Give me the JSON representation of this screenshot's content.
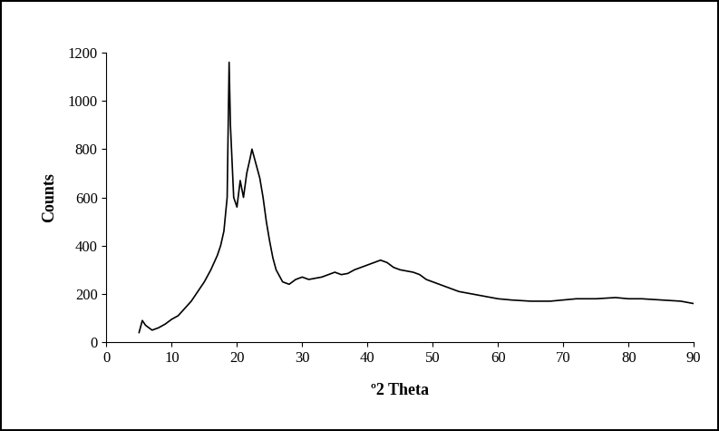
{
  "chart_data": {
    "type": "line",
    "x_label": "º2 Theta",
    "y_label": "Counts",
    "x": [
      5,
      5.5,
      6,
      7,
      8,
      9,
      10,
      11,
      12,
      13,
      14,
      15,
      16,
      17,
      17.5,
      18,
      18.5,
      18.8,
      19,
      19.5,
      20,
      20.5,
      21,
      21.5,
      22,
      22.3,
      22.8,
      23.5,
      24,
      24.5,
      25,
      25.5,
      26,
      27,
      28,
      29,
      30,
      31,
      32,
      33,
      34,
      35,
      36,
      37,
      38,
      39,
      40,
      41,
      42,
      43,
      44,
      45,
      46,
      47,
      48,
      49,
      50,
      52,
      54,
      56,
      58,
      60,
      62,
      65,
      68,
      70,
      72,
      75,
      78,
      80,
      82,
      85,
      88,
      90
    ],
    "values": [
      40,
      90,
      70,
      50,
      60,
      75,
      95,
      110,
      140,
      170,
      210,
      250,
      300,
      360,
      400,
      460,
      600,
      1160,
      900,
      600,
      560,
      670,
      600,
      700,
      760,
      800,
      750,
      680,
      600,
      500,
      420,
      350,
      300,
      250,
      240,
      260,
      270,
      260,
      265,
      270,
      280,
      290,
      280,
      285,
      300,
      310,
      320,
      330,
      340,
      330,
      310,
      300,
      295,
      290,
      280,
      260,
      250,
      230,
      210,
      200,
      190,
      180,
      175,
      170,
      170,
      175,
      180,
      180,
      185,
      180,
      180,
      175,
      170,
      160
    ],
    "color": "#000000",
    "xlim": [
      0,
      90
    ],
    "xticks": [
      0,
      10,
      20,
      30,
      40,
      50,
      60,
      70,
      80,
      90
    ],
    "ylim": [
      0,
      1200
    ],
    "yticks": [
      0,
      200,
      400,
      600,
      800,
      1000,
      1200
    ],
    "grid": false
  }
}
